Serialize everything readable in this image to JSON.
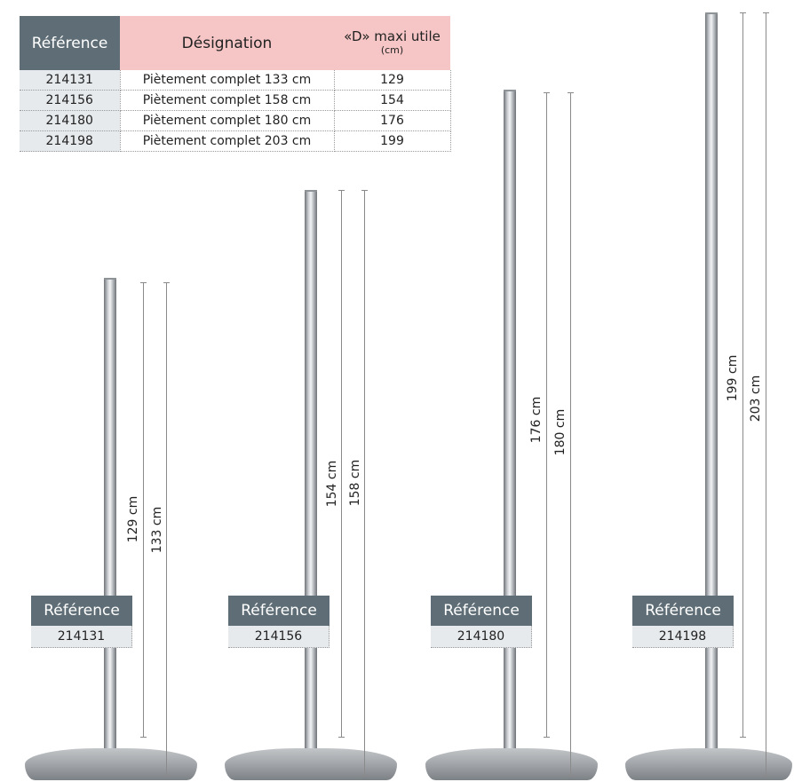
{
  "table": {
    "headers": {
      "reference": "Référence",
      "designation": "Désignation",
      "max_useful": "«D» maxi utile",
      "max_useful_unit": "(cm)"
    },
    "rows": [
      {
        "reference": "214131",
        "designation": "Piètement complet 133 cm",
        "max_d": "129"
      },
      {
        "reference": "214156",
        "designation": "Piètement complet 158 cm",
        "max_d": "154"
      },
      {
        "reference": "214180",
        "designation": "Piètement complet 180 cm",
        "max_d": "176"
      },
      {
        "reference": "214198",
        "designation": "Piètement complet 203 cm",
        "max_d": "199"
      }
    ]
  },
  "products": [
    {
      "ref_label": "Référence",
      "ref_value": "214131",
      "dim_inner": "129 cm",
      "dim_outer": "133 cm"
    },
    {
      "ref_label": "Référence",
      "ref_value": "214156",
      "dim_inner": "154 cm",
      "dim_outer": "158 cm"
    },
    {
      "ref_label": "Référence",
      "ref_value": "214180",
      "dim_inner": "176 cm",
      "dim_outer": "180 cm"
    },
    {
      "ref_label": "Référence",
      "ref_value": "214198",
      "dim_inner": "199 cm",
      "dim_outer": "203 cm"
    }
  ],
  "colors": {
    "header_dark": "#5f6e76",
    "header_pink": "#f6c5c5",
    "row_ref_bg": "#e6eaed"
  }
}
